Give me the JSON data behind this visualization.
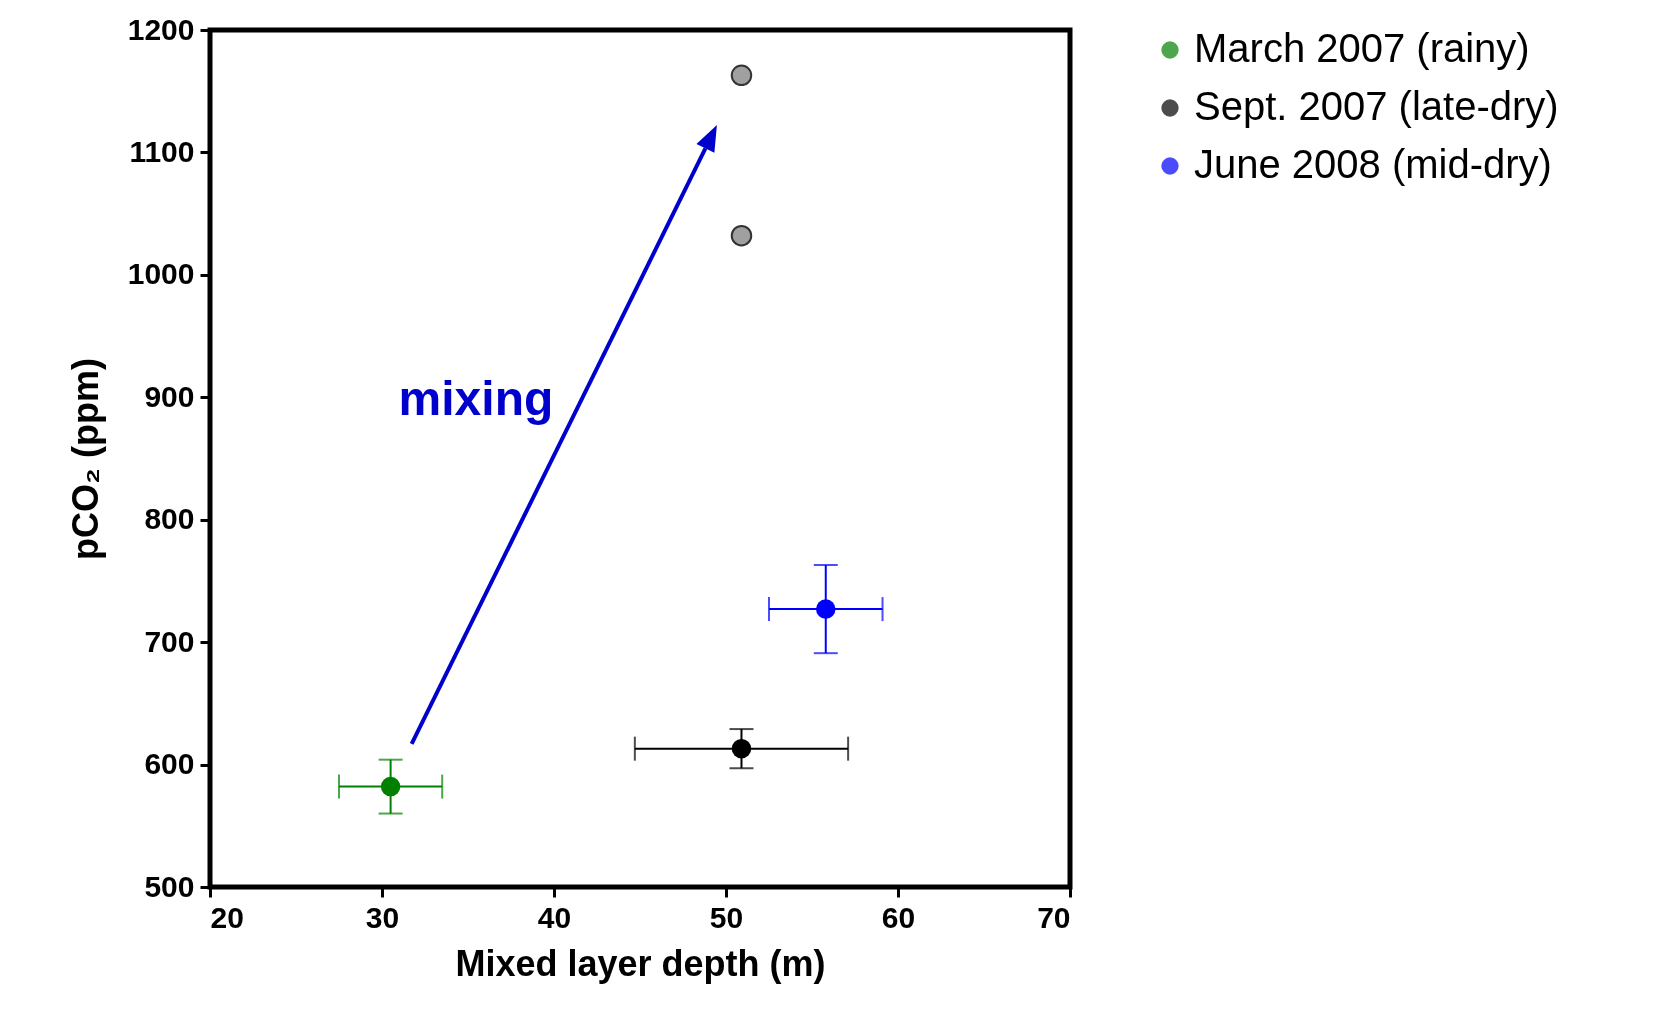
{
  "chart_data": {
    "type": "scatter",
    "xlabel": "Mixed layer depth (m)",
    "ylabel": "pCO₂ (ppm)",
    "xlim": [
      20,
      70
    ],
    "xticks": [
      20,
      30,
      40,
      50,
      60,
      70
    ],
    "ylim": [
      500,
      1200
    ],
    "yticks": [
      500,
      600,
      700,
      800,
      900,
      1000,
      1100,
      1200
    ],
    "grid": false,
    "legend": "top right",
    "marker": "circle",
    "annotations": [
      "mixing"
    ],
    "series": [
      {
        "name": "March 2007 (rainy)",
        "color": "#008000",
        "x": [
          30.5
        ],
        "values": [
          582
        ],
        "errors": [
          22
        ],
        "xerrors": [
          3
        ]
      },
      {
        "name": "Sept. 2007 (late-dry)",
        "color": "#000000",
        "x": [
          50.9
        ],
        "values": [
          613
        ],
        "errors": [
          16
        ],
        "xerrors": [
          6.2
        ]
      },
      {
        "name": "June 2008 (mid-dry)",
        "color": "#0000ff",
        "x": [
          55.8
        ],
        "values": [
          727
        ],
        "errors": [
          36
        ],
        "xerrors": [
          3.3
        ]
      },
      {
        "color": "#a0a0a0",
        "x": [
          50.9,
          50.9
        ],
        "values": [
          1163,
          1032
        ]
      }
    ]
  }
}
